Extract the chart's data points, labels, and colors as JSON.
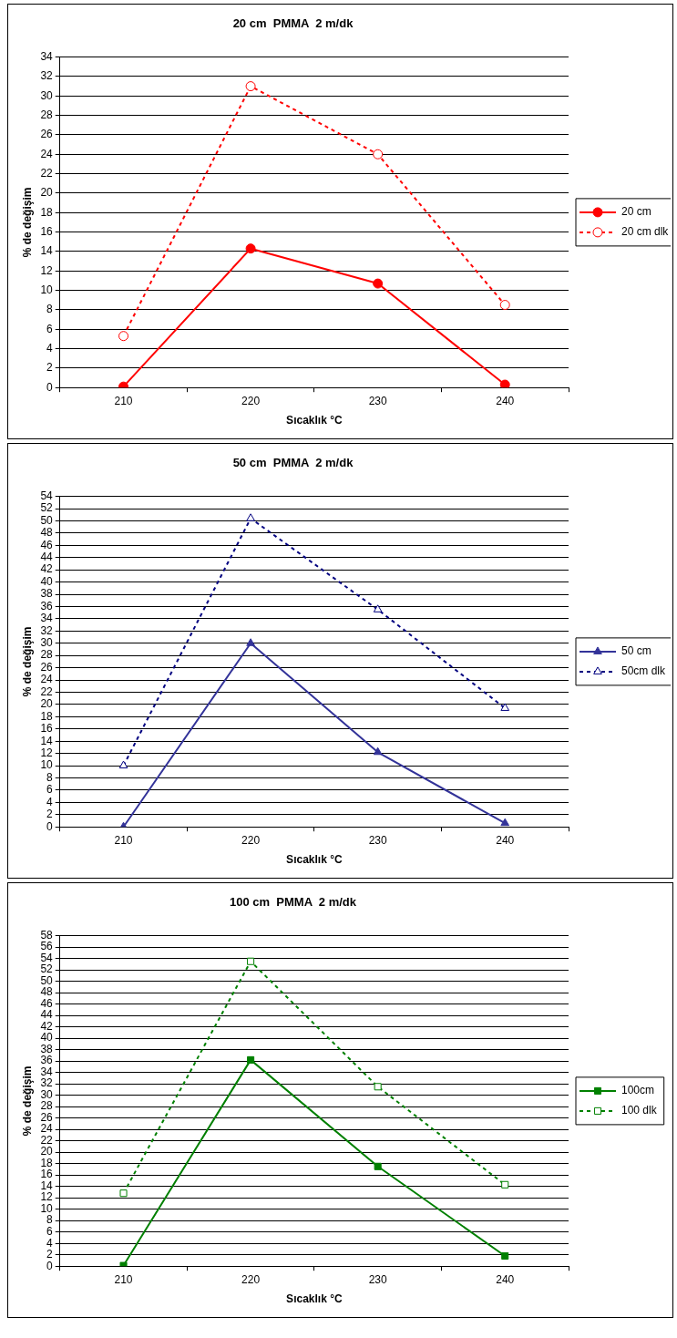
{
  "chart_data": [
    {
      "type": "line",
      "title": "20 cm  PMMA  2 m/dk",
      "xlabel": "Sıcaklık °C",
      "ylabel": "% de değişim",
      "categories": [
        "210",
        "220",
        "230",
        "240"
      ],
      "series": [
        {
          "name": "20 cm",
          "color": "#ff0000",
          "values": [
            0.1,
            14.3,
            10.7,
            0.3
          ],
          "marker": "circle",
          "line_style": "solid"
        },
        {
          "name": "20 cm dlk",
          "color": "#ff0000",
          "values": [
            5.3,
            31.0,
            24.0,
            8.5
          ],
          "marker": "circle",
          "line_style": "dashed"
        }
      ],
      "ylim": [
        0,
        34
      ],
      "yticks": [
        0,
        2,
        4,
        6,
        8,
        10,
        12,
        14,
        16,
        18,
        20,
        22,
        24,
        26,
        28,
        30,
        32,
        34
      ],
      "grid": "y",
      "legend": "right"
    },
    {
      "type": "line",
      "title": "50 cm  PMMA  2 m/dk",
      "xlabel": "Sıcaklık °C",
      "ylabel": "% de değişim",
      "categories": [
        "210",
        "220",
        "230",
        "240"
      ],
      "series": [
        {
          "name": "50 cm",
          "color": "#333399",
          "values": [
            0,
            30,
            12.2,
            0.6
          ],
          "marker": "triangle",
          "line_style": "solid"
        },
        {
          "name": "50cm dlk",
          "color": "#000080",
          "values": [
            10,
            50.4,
            35.5,
            19.4
          ],
          "marker": "triangle",
          "line_style": "dashed"
        }
      ],
      "ylim": [
        0,
        54
      ],
      "yticks": [
        0,
        2,
        4,
        6,
        8,
        10,
        12,
        14,
        16,
        18,
        20,
        22,
        24,
        26,
        28,
        30,
        32,
        34,
        36,
        38,
        40,
        42,
        44,
        46,
        48,
        50,
        52,
        54
      ],
      "grid": "y",
      "legend": "right"
    },
    {
      "type": "line",
      "title": "100 cm  PMMA  2 m/dk",
      "xlabel": "Sıcaklık °C",
      "ylabel": "% de değişim",
      "categories": [
        "210",
        "220",
        "230",
        "240"
      ],
      "series": [
        {
          "name": "100cm",
          "color": "#008000",
          "values": [
            0.1,
            36.2,
            17.5,
            1.8
          ],
          "marker": "square",
          "line_style": "solid"
        },
        {
          "name": "100 dlk",
          "color": "#008000",
          "values": [
            12.8,
            53.5,
            31.5,
            14.3
          ],
          "marker": "square",
          "line_style": "dashed"
        }
      ],
      "ylim": [
        0,
        58
      ],
      "yticks": [
        0,
        2,
        4,
        6,
        8,
        10,
        12,
        14,
        16,
        18,
        20,
        22,
        24,
        26,
        28,
        30,
        32,
        34,
        36,
        38,
        40,
        42,
        44,
        46,
        48,
        50,
        52,
        54,
        56,
        58
      ],
      "grid": "y",
      "legend": "right"
    }
  ]
}
